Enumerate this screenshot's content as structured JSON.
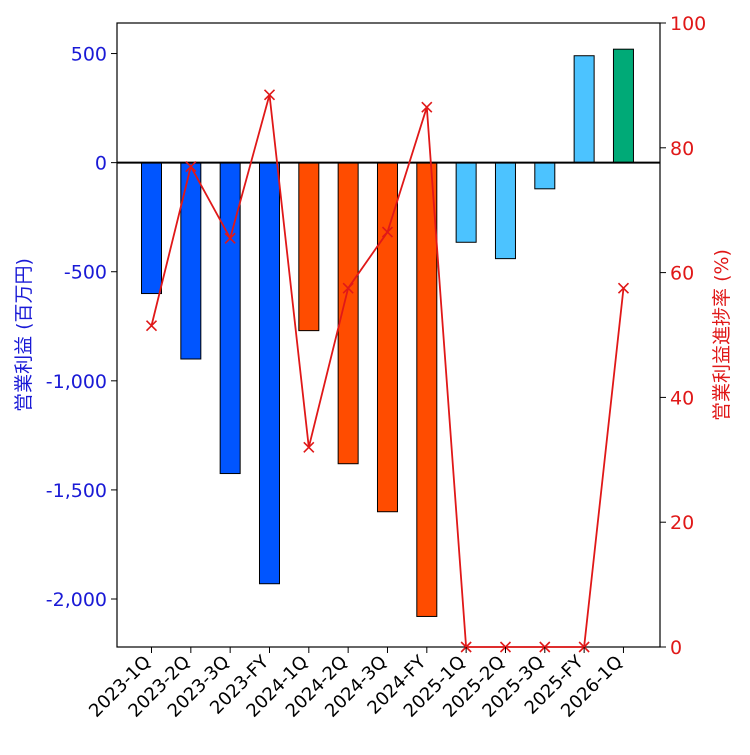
{
  "chart_data": {
    "type": "bar+line",
    "categories": [
      "2023-1Q",
      "2023-2Q",
      "2023-3Q",
      "2023-FY",
      "2024-1Q",
      "2024-2Q",
      "2024-3Q",
      "2024-FY",
      "2025-1Q",
      "2025-2Q",
      "2025-3Q",
      "2025-FY",
      "2026-1Q"
    ],
    "bar_series": {
      "name": "営業利益 (百万円)",
      "values": [
        -600,
        -900,
        -1425,
        -1930,
        -770,
        -1380,
        -1600,
        -2080,
        -365,
        -440,
        -120,
        490,
        520
      ],
      "colors": [
        "#0055ff",
        "#0055ff",
        "#0055ff",
        "#0055ff",
        "#ff4c00",
        "#ff4c00",
        "#ff4c00",
        "#ff4c00",
        "#4cc3ff",
        "#4cc3ff",
        "#4cc3ff",
        "#4cc3ff",
        "#00aa77"
      ]
    },
    "line_series": {
      "name": "営業利益進捗率 (%)",
      "values": [
        51.5,
        77,
        65.5,
        88.5,
        32,
        57.5,
        66.5,
        86.5,
        0,
        0,
        0,
        0,
        57.5
      ],
      "color": "#e01818",
      "marker": "x"
    },
    "ylabel_left": "営業利益 (百万円)",
    "ylabel_right": "営業利益進捗率 (%)",
    "ylim_left": [
      -2220,
      640
    ],
    "ylim_right": [
      0,
      100
    ],
    "yticks_left": [
      500,
      0,
      -500,
      -1000,
      -1500,
      -2000
    ],
    "ytick_labels_left": [
      "500",
      "0",
      "-500",
      "-1,000",
      "-1,500",
      "-2,000"
    ],
    "yticks_right": [
      100,
      80,
      60,
      40,
      20,
      0
    ],
    "ytick_labels_right": [
      "100",
      "80",
      "60",
      "40",
      "20",
      "0"
    ],
    "colors": {
      "left_axis": "#1a1ad6",
      "right_axis": "#e01818",
      "axis": "#000000"
    }
  }
}
